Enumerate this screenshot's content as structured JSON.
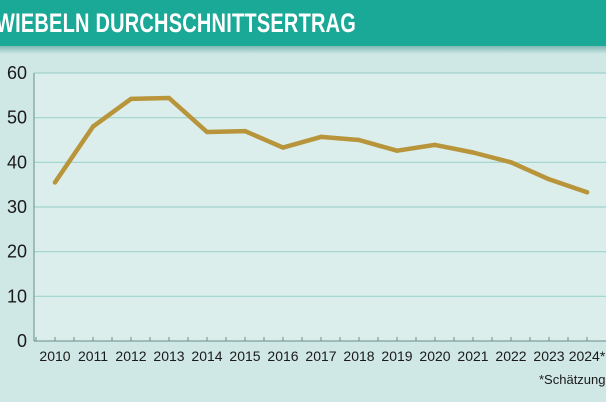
{
  "header": {
    "title": "WIEBELN DURCHSCHNITTSERTRAG"
  },
  "colors": {
    "header": "#1aa897",
    "plot_bg": "#dbeeec",
    "grid": "#9fd3cc",
    "line": "#b8953a"
  },
  "chart_data": {
    "type": "line",
    "title": "WIEBELN DURCHSCHNITTSERTRAG",
    "xlabel": "",
    "ylabel": "",
    "categories": [
      "2010",
      "2011",
      "2012",
      "2013",
      "2014",
      "2015",
      "2016",
      "2017",
      "2018",
      "2019",
      "2020",
      "2021",
      "2022",
      "2023",
      "2024*"
    ],
    "series": [
      {
        "values": [
          35.5,
          48,
          54.2,
          54.4,
          46.8,
          47,
          43.3,
          45.7,
          45,
          42.6,
          43.9,
          42.2,
          40,
          36.2,
          33.3
        ]
      }
    ],
    "ylim": [
      0,
      60
    ],
    "yticks": [
      "0",
      "10",
      "20",
      "30",
      "40",
      "50",
      "60"
    ],
    "grid": true,
    "footnote": "*Schätzung"
  }
}
